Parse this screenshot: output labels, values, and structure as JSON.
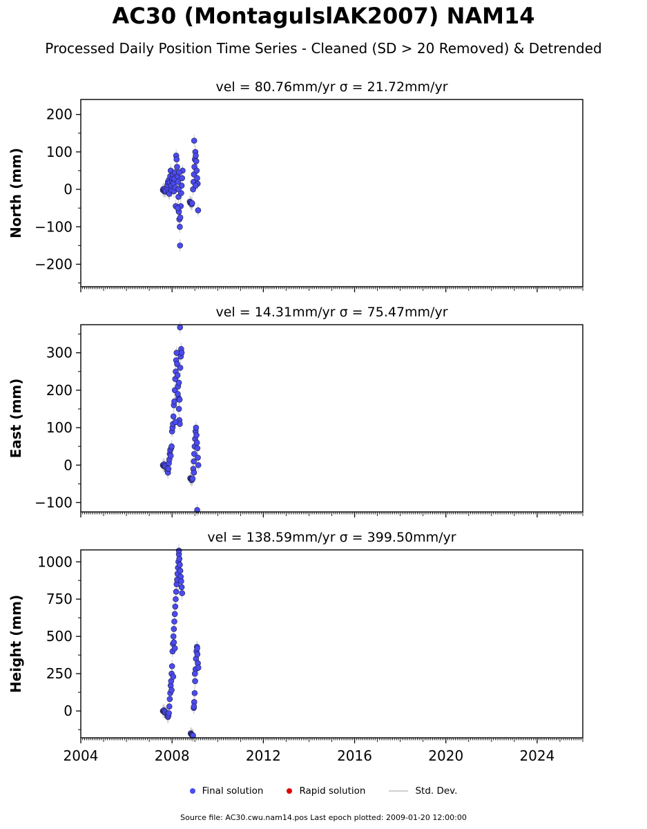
{
  "title": "AC30 (MontaguIslAK2007) NAM14",
  "subtitle": "Processed Daily Position Time Series - Cleaned (SD > 20 Removed) & Detrended",
  "colors": {
    "final": "#4b4bf0",
    "rapid": "#e00000",
    "stddev": "#d0d0d0",
    "edge": "#1a1a3a"
  },
  "legend": {
    "final_label": "Final solution",
    "rapid_label": "Rapid solution",
    "std_label": "Std. Dev."
  },
  "footer": {
    "source_text": "Source file: AC30.cwu.nam14.pos  Last epoch plotted: 2009-01-20 12:00:00"
  },
  "chart_data": [
    {
      "type": "scatter",
      "panel_title": "vel = 80.76mm/yr   σ = 21.72mm/yr",
      "ylabel": "North (mm)",
      "xlim": [
        2004,
        2026
      ],
      "ylim": [
        -260,
        240
      ],
      "yticks": [
        -200,
        -100,
        0,
        100,
        200
      ],
      "ytick_labels": [
        "−200",
        "−100",
        "0",
        "100",
        "200"
      ],
      "xticks": [
        2004,
        2008,
        2012,
        2016,
        2020,
        2024
      ],
      "xtick_labels": [],
      "points": [
        [
          2007.6,
          -2
        ],
        [
          2007.62,
          1
        ],
        [
          2007.64,
          -3
        ],
        [
          2007.66,
          -5
        ],
        [
          2007.68,
          -1
        ],
        [
          2007.7,
          -6
        ],
        [
          2007.72,
          -4
        ],
        [
          2007.78,
          5
        ],
        [
          2007.8,
          12
        ],
        [
          2007.82,
          20
        ],
        [
          2007.84,
          -8
        ],
        [
          2007.86,
          25
        ],
        [
          2007.88,
          -12
        ],
        [
          2007.9,
          18
        ],
        [
          2007.92,
          35
        ],
        [
          2007.94,
          50
        ],
        [
          2007.96,
          10
        ],
        [
          2007.98,
          -3
        ],
        [
          2008.0,
          22
        ],
        [
          2008.02,
          30
        ],
        [
          2008.04,
          40
        ],
        [
          2008.06,
          15
        ],
        [
          2008.08,
          -5
        ],
        [
          2008.1,
          28
        ],
        [
          2008.12,
          45
        ],
        [
          2008.14,
          5
        ],
        [
          2008.16,
          -45
        ],
        [
          2008.18,
          90
        ],
        [
          2008.2,
          80
        ],
        [
          2008.22,
          60
        ],
        [
          2008.24,
          35
        ],
        [
          2008.26,
          20
        ],
        [
          2008.28,
          -20
        ],
        [
          2008.3,
          -60
        ],
        [
          2008.32,
          -80
        ],
        [
          2008.34,
          -100
        ],
        [
          2008.36,
          -75
        ],
        [
          2008.38,
          -45
        ],
        [
          2008.4,
          -10
        ],
        [
          2008.42,
          10
        ],
        [
          2008.44,
          30
        ],
        [
          2008.46,
          50
        ],
        [
          2008.35,
          -150
        ],
        [
          2008.28,
          0
        ],
        [
          2008.31,
          45
        ],
        [
          2008.25,
          -50
        ],
        [
          2008.78,
          -33
        ],
        [
          2008.8,
          -36
        ],
        [
          2008.82,
          -35
        ],
        [
          2008.84,
          -38
        ],
        [
          2008.86,
          -40
        ],
        [
          2008.88,
          -37
        ],
        [
          2008.92,
          0
        ],
        [
          2008.94,
          20
        ],
        [
          2008.96,
          40
        ],
        [
          2008.98,
          60
        ],
        [
          2009.0,
          80
        ],
        [
          2009.02,
          100
        ],
        [
          2008.97,
          130
        ],
        [
          2009.04,
          90
        ],
        [
          2009.06,
          75
        ],
        [
          2009.08,
          50
        ],
        [
          2009.1,
          30
        ],
        [
          2009.12,
          15
        ],
        [
          2009.14,
          -56
        ],
        [
          2009.03,
          10
        ]
      ]
    },
    {
      "type": "scatter",
      "panel_title": "vel = 14.31mm/yr   σ = 75.47mm/yr",
      "ylabel": "East (mm)",
      "xlim": [
        2004,
        2026
      ],
      "ylim": [
        -125,
        375
      ],
      "yticks": [
        -100,
        0,
        100,
        200,
        300
      ],
      "ytick_labels": [
        "−100",
        "0",
        "100",
        "200",
        "300"
      ],
      "xticks": [
        2004,
        2008,
        2012,
        2016,
        2020,
        2024
      ],
      "xtick_labels": [],
      "points": [
        [
          2007.6,
          0
        ],
        [
          2007.62,
          -2
        ],
        [
          2007.64,
          2
        ],
        [
          2007.66,
          -3
        ],
        [
          2007.68,
          -1
        ],
        [
          2007.7,
          -4
        ],
        [
          2007.78,
          -8
        ],
        [
          2007.8,
          -15
        ],
        [
          2007.82,
          -20
        ],
        [
          2007.84,
          -10
        ],
        [
          2007.86,
          5
        ],
        [
          2007.88,
          15
        ],
        [
          2007.9,
          30
        ],
        [
          2007.92,
          40
        ],
        [
          2007.94,
          25
        ],
        [
          2007.96,
          45
        ],
        [
          2007.98,
          50
        ],
        [
          2008.0,
          90
        ],
        [
          2008.02,
          100
        ],
        [
          2008.04,
          110
        ],
        [
          2008.06,
          130
        ],
        [
          2008.08,
          160
        ],
        [
          2008.1,
          170
        ],
        [
          2008.12,
          200
        ],
        [
          2008.14,
          230
        ],
        [
          2008.16,
          250
        ],
        [
          2008.18,
          280
        ],
        [
          2008.2,
          300
        ],
        [
          2008.22,
          270
        ],
        [
          2008.24,
          240
        ],
        [
          2008.26,
          210
        ],
        [
          2008.28,
          180
        ],
        [
          2008.3,
          150
        ],
        [
          2008.32,
          120
        ],
        [
          2008.34,
          110
        ],
        [
          2008.36,
          260
        ],
        [
          2008.38,
          290
        ],
        [
          2008.4,
          310
        ],
        [
          2008.42,
          300
        ],
        [
          2008.3,
          220
        ],
        [
          2008.33,
          175
        ],
        [
          2008.35,
          368
        ],
        [
          2008.25,
          190
        ],
        [
          2008.15,
          115
        ],
        [
          2008.8,
          -35
        ],
        [
          2008.82,
          -37
        ],
        [
          2008.84,
          -38
        ],
        [
          2008.86,
          -40
        ],
        [
          2008.88,
          -39
        ],
        [
          2008.9,
          -36
        ],
        [
          2008.93,
          -10
        ],
        [
          2008.95,
          10
        ],
        [
          2008.97,
          30
        ],
        [
          2008.99,
          50
        ],
        [
          2009.01,
          70
        ],
        [
          2009.03,
          90
        ],
        [
          2009.05,
          100
        ],
        [
          2009.07,
          80
        ],
        [
          2009.09,
          60
        ],
        [
          2009.11,
          45
        ],
        [
          2009.13,
          20
        ],
        [
          2009.15,
          0
        ],
        [
          2009.1,
          -120
        ],
        [
          2008.96,
          -20
        ]
      ]
    },
    {
      "type": "scatter",
      "panel_title": "vel = 138.59mm/yr   σ = 399.50mm/yr",
      "ylabel": "Height (mm)",
      "xlim": [
        2004,
        2026
      ],
      "ylim": [
        -180,
        1080
      ],
      "yticks": [
        0,
        250,
        500,
        750,
        1000
      ],
      "ytick_labels": [
        "0",
        "250",
        "500",
        "750",
        "1000"
      ],
      "xticks": [
        2004,
        2008,
        2012,
        2016,
        2020,
        2024
      ],
      "xtick_labels": [
        "2004",
        "2008",
        "2012",
        "2016",
        "2020",
        "2024"
      ],
      "points": [
        [
          2007.6,
          0
        ],
        [
          2007.62,
          -3
        ],
        [
          2007.64,
          5
        ],
        [
          2007.66,
          -8
        ],
        [
          2007.68,
          -2
        ],
        [
          2007.7,
          -10
        ],
        [
          2007.78,
          -20
        ],
        [
          2007.8,
          -35
        ],
        [
          2007.82,
          -40
        ],
        [
          2007.84,
          -30
        ],
        [
          2007.86,
          -15
        ],
        [
          2007.88,
          30
        ],
        [
          2007.9,
          80
        ],
        [
          2007.92,
          120
        ],
        [
          2007.94,
          170
        ],
        [
          2007.96,
          200
        ],
        [
          2007.98,
          250
        ],
        [
          2008.0,
          300
        ],
        [
          2008.02,
          400
        ],
        [
          2008.04,
          450
        ],
        [
          2008.06,
          500
        ],
        [
          2008.08,
          550
        ],
        [
          2008.1,
          600
        ],
        [
          2008.12,
          650
        ],
        [
          2008.14,
          700
        ],
        [
          2008.16,
          750
        ],
        [
          2008.18,
          800
        ],
        [
          2008.2,
          850
        ],
        [
          2008.22,
          880
        ],
        [
          2008.24,
          920
        ],
        [
          2008.26,
          960
        ],
        [
          2008.28,
          1000
        ],
        [
          2008.3,
          1050
        ],
        [
          2008.32,
          1020
        ],
        [
          2008.34,
          980
        ],
        [
          2008.36,
          940
        ],
        [
          2008.38,
          900
        ],
        [
          2008.4,
          870
        ],
        [
          2008.42,
          830
        ],
        [
          2008.44,
          790
        ],
        [
          2008.3,
          1075
        ],
        [
          2008.12,
          420
        ],
        [
          2008.08,
          460
        ],
        [
          2007.98,
          140
        ],
        [
          2008.05,
          230
        ],
        [
          2008.82,
          -150
        ],
        [
          2008.84,
          -155
        ],
        [
          2008.86,
          -158
        ],
        [
          2008.88,
          -160
        ],
        [
          2008.9,
          -162
        ],
        [
          2008.92,
          -165
        ],
        [
          2008.95,
          20
        ],
        [
          2008.97,
          60
        ],
        [
          2008.99,
          120
        ],
        [
          2009.01,
          200
        ],
        [
          2009.03,
          280
        ],
        [
          2009.05,
          350
        ],
        [
          2009.07,
          400
        ],
        [
          2009.09,
          430
        ],
        [
          2009.11,
          380
        ],
        [
          2009.13,
          320
        ],
        [
          2009.15,
          290
        ],
        [
          2009.1,
          420
        ],
        [
          2009.0,
          250
        ],
        [
          2008.96,
          30
        ]
      ]
    }
  ]
}
